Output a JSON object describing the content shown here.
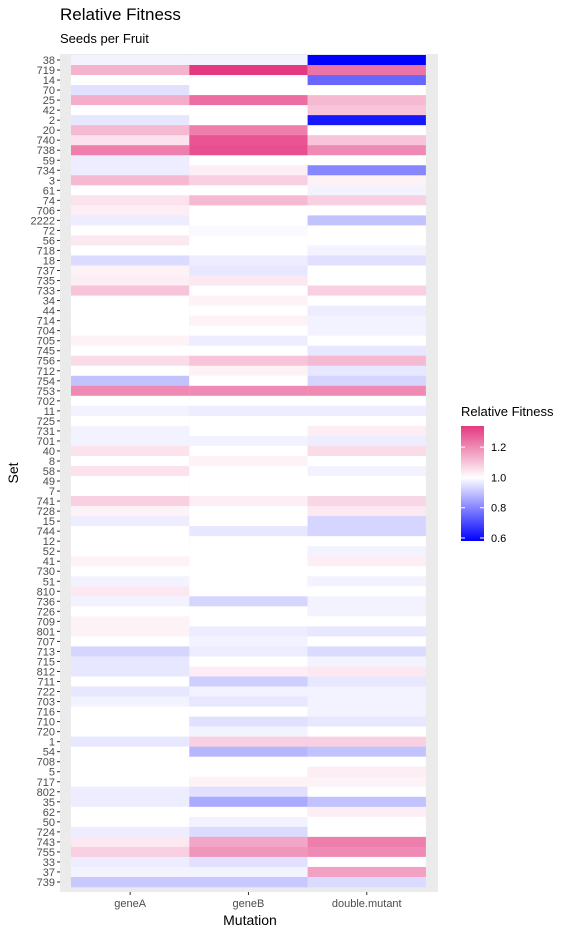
{
  "chart_data": {
    "type": "heatmap",
    "title": "Relative Fitness",
    "subtitle": "Seeds per Fruit",
    "xlabel": "Mutation",
    "ylabel": "Set",
    "columns": [
      "geneA",
      "geneB",
      "double.mutant"
    ],
    "legend": {
      "title": "Relative Fitness",
      "ticks": [
        0.6,
        0.8,
        1.0,
        1.2
      ],
      "tick_labels": [
        "0.6",
        "0.8",
        "1.0",
        "1.2"
      ],
      "range": [
        0.58,
        1.34
      ],
      "position": "right"
    },
    "colors": {
      "low": "#0000ff",
      "mid": "#ffffff",
      "high": "#e4387f",
      "panel": "#ebebeb"
    },
    "rows": [
      {
        "set": "38",
        "values": [
          0.98,
          0.98,
          0.58
        ]
      },
      {
        "set": "719",
        "values": [
          1.13,
          1.34,
          1.24
        ]
      },
      {
        "set": "14",
        "values": [
          1.0,
          1.0,
          0.75
        ]
      },
      {
        "set": "70",
        "values": [
          0.95,
          1.0,
          1.0
        ]
      },
      {
        "set": "25",
        "values": [
          1.14,
          1.25,
          1.12
        ]
      },
      {
        "set": "42",
        "values": [
          1.0,
          1.0,
          1.1
        ]
      },
      {
        "set": "2",
        "values": [
          0.96,
          1.0,
          0.62
        ]
      },
      {
        "set": "20",
        "values": [
          1.12,
          1.22,
          1.0
        ]
      },
      {
        "set": "740",
        "values": [
          1.05,
          1.29,
          1.1
        ]
      },
      {
        "set": "738",
        "values": [
          1.22,
          1.3,
          1.2
        ]
      },
      {
        "set": "59",
        "values": [
          0.97,
          1.0,
          1.0
        ]
      },
      {
        "set": "734",
        "values": [
          0.97,
          1.03,
          0.8
        ]
      },
      {
        "set": "3",
        "values": [
          1.12,
          1.08,
          1.02
        ]
      },
      {
        "set": "61",
        "values": [
          1.0,
          1.0,
          0.98
        ]
      },
      {
        "set": "74",
        "values": [
          1.05,
          1.12,
          1.08
        ]
      },
      {
        "set": "706",
        "values": [
          1.03,
          1.0,
          1.0
        ]
      },
      {
        "set": "2222",
        "values": [
          0.97,
          1.0,
          0.9
        ]
      },
      {
        "set": "72",
        "values": [
          1.0,
          0.99,
          1.0
        ]
      },
      {
        "set": "56",
        "values": [
          1.04,
          1.0,
          1.0
        ]
      },
      {
        "set": "718",
        "values": [
          1.0,
          1.0,
          0.98
        ]
      },
      {
        "set": "18",
        "values": [
          0.94,
          0.97,
          0.95
        ]
      },
      {
        "set": "737",
        "values": [
          1.02,
          0.96,
          1.0
        ]
      },
      {
        "set": "735",
        "values": [
          1.03,
          1.04,
          1.0
        ]
      },
      {
        "set": "733",
        "values": [
          1.1,
          1.0,
          1.08
        ]
      },
      {
        "set": "34",
        "values": [
          1.0,
          1.02,
          1.0
        ]
      },
      {
        "set": "44",
        "values": [
          1.0,
          1.0,
          0.97
        ]
      },
      {
        "set": "714",
        "values": [
          1.0,
          1.02,
          0.98
        ]
      },
      {
        "set": "704",
        "values": [
          1.0,
          1.0,
          0.98
        ]
      },
      {
        "set": "705",
        "values": [
          1.02,
          0.97,
          1.0
        ]
      },
      {
        "set": "745",
        "values": [
          1.0,
          1.0,
          0.96
        ]
      },
      {
        "set": "756",
        "values": [
          1.06,
          1.1,
          1.12
        ]
      },
      {
        "set": "712",
        "values": [
          1.0,
          1.02,
          0.96
        ]
      },
      {
        "set": "754",
        "values": [
          0.9,
          1.0,
          0.93
        ]
      },
      {
        "set": "753",
        "values": [
          1.2,
          1.2,
          1.2
        ]
      },
      {
        "set": "702",
        "values": [
          1.0,
          1.0,
          1.0
        ]
      },
      {
        "set": "11",
        "values": [
          0.98,
          0.97,
          0.97
        ]
      },
      {
        "set": "725",
        "values": [
          1.0,
          1.0,
          1.0
        ]
      },
      {
        "set": "731",
        "values": [
          0.98,
          1.0,
          1.03
        ]
      },
      {
        "set": "701",
        "values": [
          0.98,
          0.98,
          0.97
        ]
      },
      {
        "set": "40",
        "values": [
          1.05,
          1.0,
          1.06
        ]
      },
      {
        "set": "8",
        "values": [
          1.0,
          1.02,
          1.0
        ]
      },
      {
        "set": "58",
        "values": [
          1.05,
          1.0,
          0.98
        ]
      },
      {
        "set": "49",
        "values": [
          1.0,
          1.0,
          1.0
        ]
      },
      {
        "set": "7",
        "values": [
          1.0,
          1.0,
          1.0
        ]
      },
      {
        "set": "741",
        "values": [
          1.08,
          1.03,
          1.07
        ]
      },
      {
        "set": "728",
        "values": [
          1.02,
          1.0,
          1.04
        ]
      },
      {
        "set": "15",
        "values": [
          0.97,
          1.0,
          0.93
        ]
      },
      {
        "set": "744",
        "values": [
          1.0,
          0.96,
          0.93
        ]
      },
      {
        "set": "12",
        "values": [
          1.0,
          1.0,
          1.0
        ]
      },
      {
        "set": "52",
        "values": [
          1.0,
          1.0,
          0.98
        ]
      },
      {
        "set": "41",
        "values": [
          1.02,
          1.0,
          1.03
        ]
      },
      {
        "set": "730",
        "values": [
          1.0,
          1.0,
          1.0
        ]
      },
      {
        "set": "51",
        "values": [
          0.98,
          1.0,
          0.98
        ]
      },
      {
        "set": "810",
        "values": [
          1.04,
          1.0,
          1.0
        ]
      },
      {
        "set": "736",
        "values": [
          0.98,
          0.93,
          0.98
        ]
      },
      {
        "set": "726",
        "values": [
          1.0,
          1.0,
          0.98
        ]
      },
      {
        "set": "709",
        "values": [
          1.02,
          1.0,
          1.0
        ]
      },
      {
        "set": "801",
        "values": [
          1.02,
          0.97,
          0.96
        ]
      },
      {
        "set": "707",
        "values": [
          1.0,
          0.98,
          1.0
        ]
      },
      {
        "set": "713",
        "values": [
          0.93,
          0.97,
          0.94
        ]
      },
      {
        "set": "715",
        "values": [
          0.96,
          1.0,
          0.98
        ]
      },
      {
        "set": "812",
        "values": [
          0.96,
          1.03,
          1.04
        ]
      },
      {
        "set": "711",
        "values": [
          1.0,
          0.92,
          0.96
        ]
      },
      {
        "set": "722",
        "values": [
          0.96,
          0.98,
          0.98
        ]
      },
      {
        "set": "703",
        "values": [
          0.98,
          0.96,
          0.98
        ]
      },
      {
        "set": "716",
        "values": [
          1.0,
          1.0,
          0.98
        ]
      },
      {
        "set": "710",
        "values": [
          1.0,
          0.95,
          0.96
        ]
      },
      {
        "set": "720",
        "values": [
          1.0,
          0.98,
          1.0
        ]
      },
      {
        "set": "1",
        "values": [
          0.96,
          1.08,
          1.08
        ]
      },
      {
        "set": "54",
        "values": [
          1.0,
          0.88,
          0.9
        ]
      },
      {
        "set": "708",
        "values": [
          1.0,
          1.0,
          1.0
        ]
      },
      {
        "set": "5",
        "values": [
          1.0,
          1.0,
          1.03
        ]
      },
      {
        "set": "717",
        "values": [
          1.0,
          1.02,
          1.02
        ]
      },
      {
        "set": "802",
        "values": [
          0.97,
          0.95,
          1.0
        ]
      },
      {
        "set": "35",
        "values": [
          0.97,
          0.86,
          0.9
        ]
      },
      {
        "set": "62",
        "values": [
          1.0,
          1.0,
          1.03
        ]
      },
      {
        "set": "50",
        "values": [
          1.0,
          0.98,
          1.0
        ]
      },
      {
        "set": "724",
        "values": [
          0.97,
          0.94,
          1.0
        ]
      },
      {
        "set": "743",
        "values": [
          1.04,
          1.15,
          1.22
        ]
      },
      {
        "set": "755",
        "values": [
          1.08,
          1.18,
          1.2
        ]
      },
      {
        "set": "33",
        "values": [
          0.97,
          0.95,
          1.0
        ]
      },
      {
        "set": "37",
        "values": [
          0.98,
          0.98,
          1.16
        ]
      },
      {
        "set": "739",
        "values": [
          0.91,
          0.91,
          0.94
        ]
      }
    ]
  }
}
